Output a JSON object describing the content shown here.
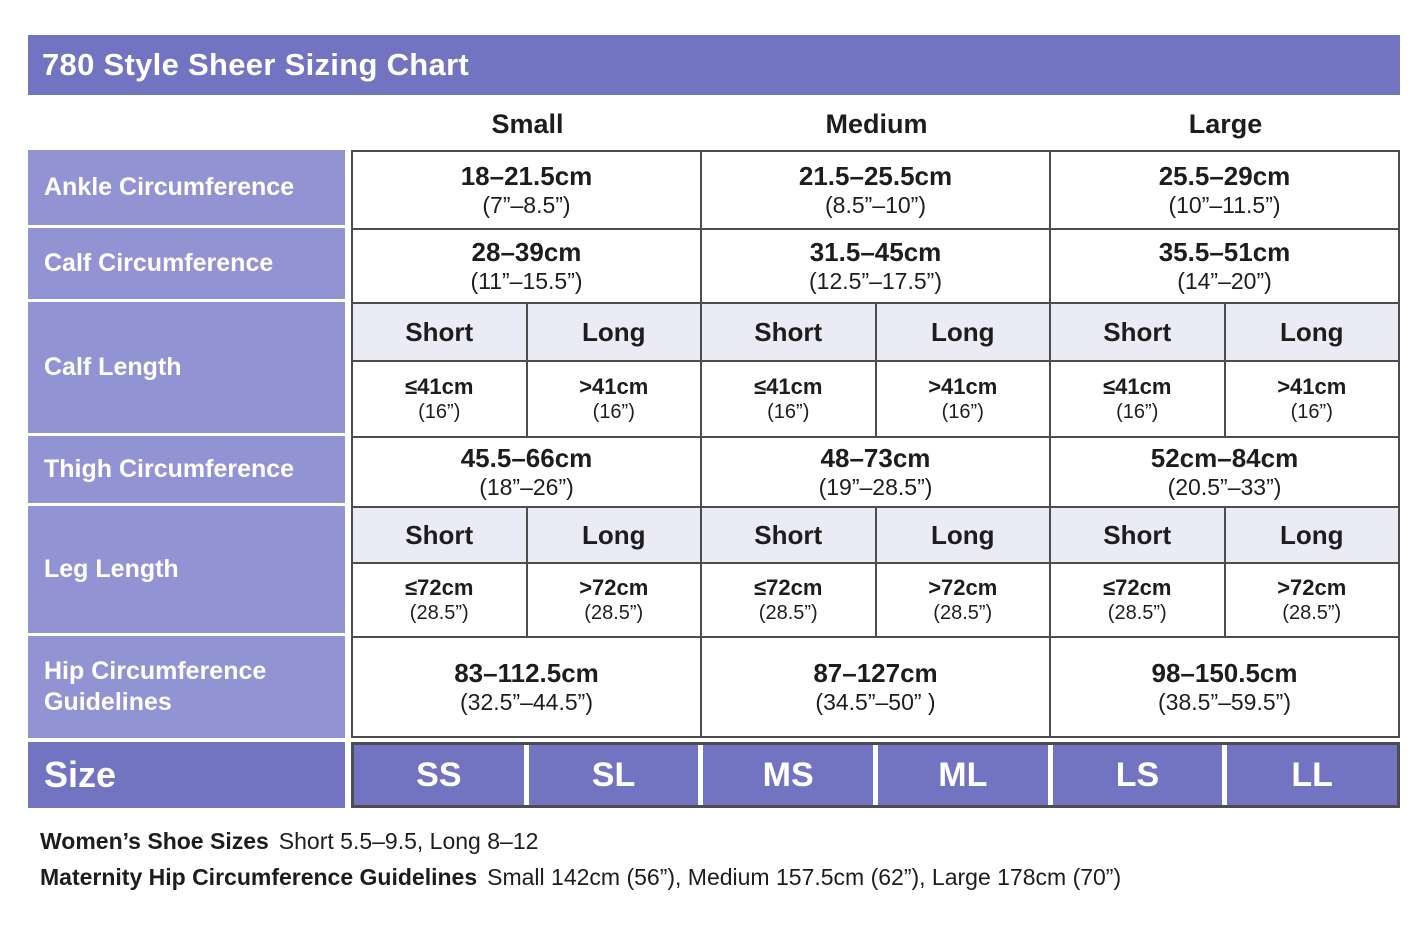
{
  "colors": {
    "header_purple": "#7274c1",
    "label_purple": "#9193d3",
    "subheader_lavender": "#ebebf6",
    "border_gray": "#4d4d4d",
    "text": "#1d1d1d"
  },
  "chart_data": {
    "type": "table",
    "title": "780 Style Sheer Sizing Chart",
    "column_groups": [
      "Small",
      "Medium",
      "Large"
    ],
    "rows": {
      "ankle": {
        "label": "Ankle Circumference",
        "cells": [
          {
            "cm": "18–21.5cm",
            "in": "(7”–8.5”)"
          },
          {
            "cm": "21.5–25.5cm",
            "in": "(8.5”–10”)"
          },
          {
            "cm": "25.5–29cm",
            "in": "(10”–11.5”)"
          }
        ]
      },
      "calf_circumference": {
        "label": "Calf Circumference",
        "cells": [
          {
            "cm": "28–39cm",
            "in": "(11”–15.5”)"
          },
          {
            "cm": "31.5–45cm",
            "in": "(12.5”–17.5”)"
          },
          {
            "cm": "35.5–51cm",
            "in": "(14”–20”)"
          }
        ]
      },
      "calf_length": {
        "label": "Calf Length",
        "subheaders": [
          "Short",
          "Long",
          "Short",
          "Long",
          "Short",
          "Long"
        ],
        "cells": [
          {
            "cm": "≤41cm",
            "in": "(16”)"
          },
          {
            "cm": ">41cm",
            "in": "(16”)"
          },
          {
            "cm": "≤41cm",
            "in": "(16”)"
          },
          {
            "cm": ">41cm",
            "in": "(16”)"
          },
          {
            "cm": "≤41cm",
            "in": "(16”)"
          },
          {
            "cm": ">41cm",
            "in": "(16”)"
          }
        ]
      },
      "thigh": {
        "label": "Thigh Circumference",
        "cells": [
          {
            "cm": "45.5–66cm",
            "in": "(18”–26”)"
          },
          {
            "cm": "48–73cm",
            "in": "(19”–28.5”)"
          },
          {
            "cm": "52cm–84cm",
            "in": "(20.5”–33”)"
          }
        ]
      },
      "leg_length": {
        "label": "Leg Length",
        "subheaders": [
          "Short",
          "Long",
          "Short",
          "Long",
          "Short",
          "Long"
        ],
        "cells": [
          {
            "cm": "≤72cm",
            "in": "(28.5”)"
          },
          {
            "cm": ">72cm",
            "in": "(28.5”)"
          },
          {
            "cm": "≤72cm",
            "in": "(28.5”)"
          },
          {
            "cm": ">72cm",
            "in": "(28.5”)"
          },
          {
            "cm": "≤72cm",
            "in": "(28.5”)"
          },
          {
            "cm": ">72cm",
            "in": "(28.5”)"
          }
        ]
      },
      "hip": {
        "label": "Hip Circumference Guidelines",
        "cells": [
          {
            "cm": "83–112.5cm",
            "in": "(32.5”–44.5”)"
          },
          {
            "cm": "87–127cm",
            "in": "(34.5”–50” )"
          },
          {
            "cm": "98–150.5cm",
            "in": "(38.5”–59.5”)"
          }
        ]
      },
      "size": {
        "label": "Size",
        "values": [
          "SS",
          "SL",
          "MS",
          "ML",
          "LS",
          "LL"
        ]
      }
    },
    "footnotes": [
      {
        "bold": "Women’s Shoe Sizes",
        "text": "Short 5.5–9.5, Long  8–12"
      },
      {
        "bold": "Maternity Hip Circumference Guidelines",
        "text": "Small 142cm (56”), Medium 157.5cm (62”), Large 178cm (70”)"
      }
    ]
  }
}
